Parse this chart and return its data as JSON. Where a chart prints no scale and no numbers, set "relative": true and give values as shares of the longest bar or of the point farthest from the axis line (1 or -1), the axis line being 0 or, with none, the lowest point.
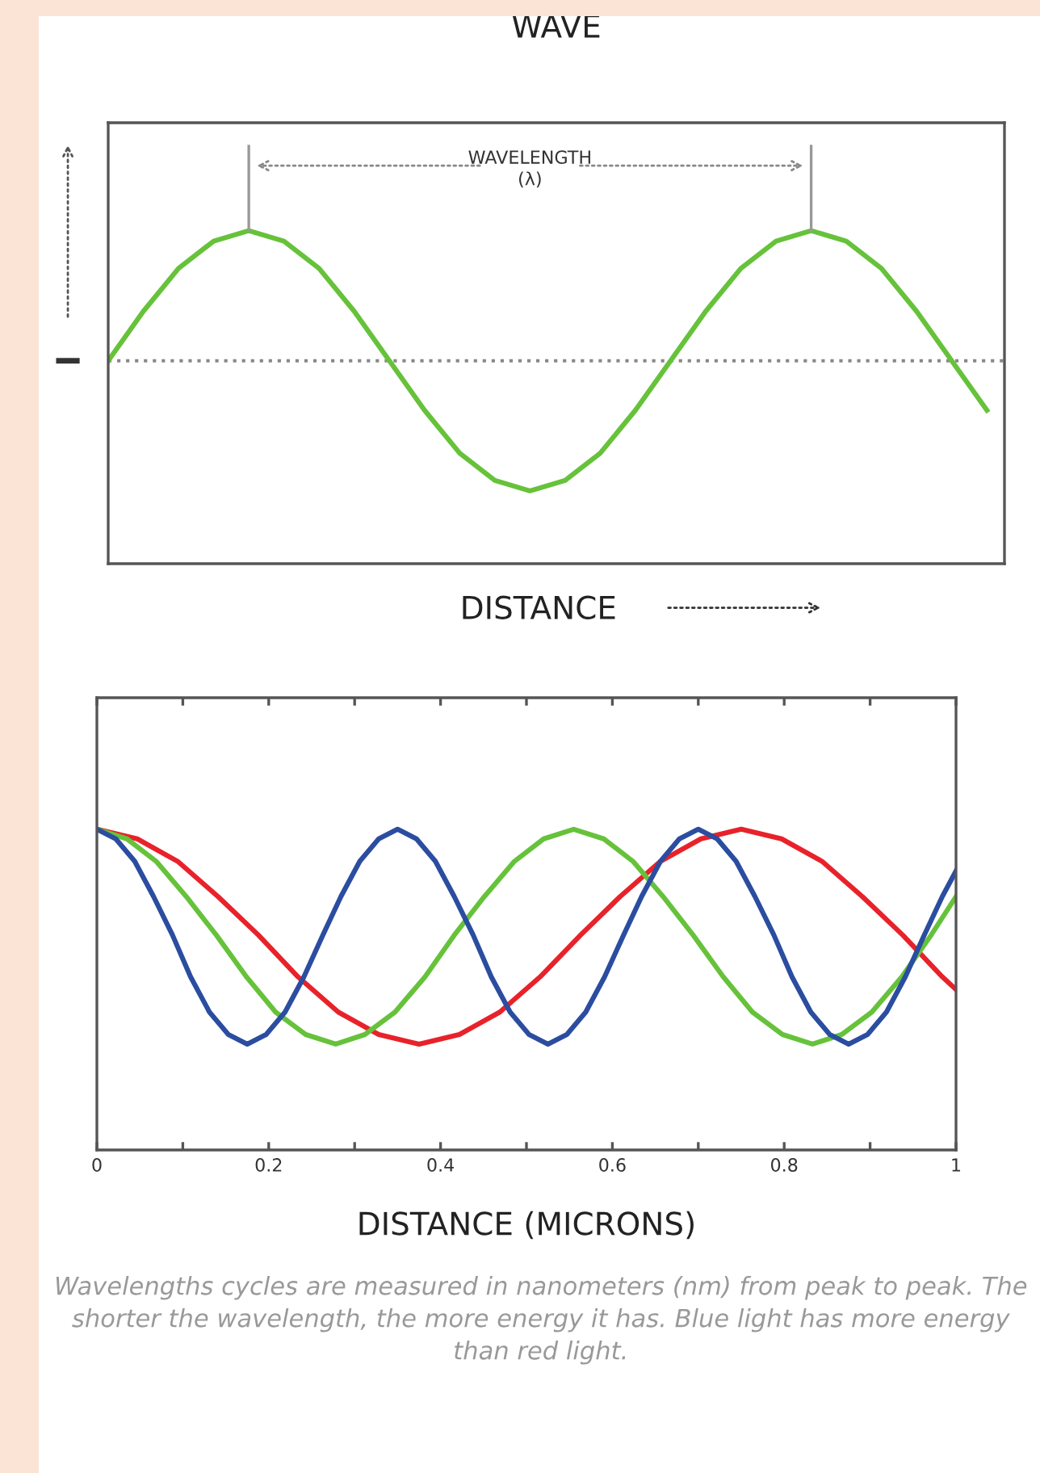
{
  "chart_data": [
    {
      "type": "line",
      "title": "WAVE",
      "xlabel": "DISTANCE",
      "relative": true,
      "tick_labels": false,
      "grid": false,
      "categories": [
        null,
        null,
        null,
        null,
        null,
        null,
        null,
        null,
        null,
        null,
        null,
        null,
        null,
        null,
        null,
        null,
        null,
        null,
        null,
        null,
        null,
        null,
        null,
        null,
        null,
        null
      ],
      "series": [
        {
          "color": "#66c23a",
          "values": [
            0,
            0.38,
            0.71,
            0.92,
            1,
            0.92,
            0.71,
            0.38,
            0,
            -0.38,
            -0.71,
            -0.92,
            -1,
            -0.92,
            -0.71,
            -0.38,
            0,
            0.38,
            0.71,
            0.92,
            1,
            0.92,
            0.71,
            0.38,
            0,
            -0.38
          ]
        }
      ],
      "ref_lines": [
        {
          "axis": "y",
          "value": 0,
          "color": "#888888",
          "line_style": "dotted"
        }
      ],
      "annotations": [
        "WAVELENGTH\n(λ)"
      ]
    },
    {
      "type": "line",
      "xlabel": "DISTANCE (MICRONS)",
      "relative": true,
      "tick_labels": "x",
      "grid": false,
      "xlim": [
        0,
        1
      ],
      "xticks": [
        0,
        {
          "value": 0.1,
          "label": null
        },
        0.2,
        {
          "value": 0.3,
          "label": null
        },
        0.4,
        {
          "value": 0.5,
          "label": null
        },
        0.6,
        {
          "value": 0.7,
          "label": null
        },
        0.8,
        {
          "value": 0.9,
          "label": null
        },
        1
      ],
      "series": [
        {
          "color": "#e8222a",
          "x": [
            0,
            0.047,
            0.094,
            0.141,
            0.188,
            0.234,
            0.281,
            0.328,
            0.375,
            0.422,
            0.469,
            0.516,
            0.563,
            0.609,
            0.656,
            0.703,
            0.75,
            0.797,
            0.844,
            0.891,
            0.938,
            0.984,
            1.0
          ],
          "values": [
            1,
            0.97,
            0.9,
            0.79,
            0.67,
            0.54,
            0.43,
            0.36,
            0.33,
            0.36,
            0.43,
            0.54,
            0.67,
            0.79,
            0.9,
            0.97,
            1,
            0.97,
            0.9,
            0.79,
            0.67,
            0.54,
            0.5
          ]
        },
        {
          "color": "#66c23a",
          "x": [
            0,
            0.035,
            0.069,
            0.104,
            0.139,
            0.174,
            0.208,
            0.243,
            0.278,
            0.312,
            0.347,
            0.382,
            0.416,
            0.451,
            0.486,
            0.52,
            0.555,
            0.59,
            0.624,
            0.659,
            0.694,
            0.729,
            0.763,
            0.798,
            0.833,
            0.867,
            0.902,
            0.937,
            0.971,
            1.0
          ],
          "values": [
            1,
            0.97,
            0.9,
            0.79,
            0.67,
            0.54,
            0.43,
            0.36,
            0.33,
            0.36,
            0.43,
            0.54,
            0.67,
            0.79,
            0.9,
            0.97,
            1,
            0.97,
            0.9,
            0.79,
            0.67,
            0.54,
            0.43,
            0.36,
            0.33,
            0.36,
            0.43,
            0.54,
            0.67,
            0.79
          ]
        },
        {
          "color": "#2b4da0",
          "x": [
            0,
            0.022,
            0.044,
            0.066,
            0.088,
            0.109,
            0.131,
            0.153,
            0.175,
            0.197,
            0.219,
            0.241,
            0.263,
            0.284,
            0.306,
            0.328,
            0.35,
            0.372,
            0.394,
            0.416,
            0.438,
            0.459,
            0.481,
            0.503,
            0.525,
            0.547,
            0.569,
            0.591,
            0.613,
            0.634,
            0.656,
            0.678,
            0.7,
            0.722,
            0.744,
            0.766,
            0.788,
            0.809,
            0.831,
            0.853,
            0.875,
            0.897,
            0.919,
            0.941,
            0.963,
            0.984,
            1.0
          ],
          "values": [
            1,
            0.97,
            0.9,
            0.79,
            0.67,
            0.54,
            0.43,
            0.36,
            0.33,
            0.36,
            0.43,
            0.54,
            0.67,
            0.79,
            0.9,
            0.97,
            1,
            0.97,
            0.9,
            0.79,
            0.67,
            0.54,
            0.43,
            0.36,
            0.33,
            0.36,
            0.43,
            0.54,
            0.67,
            0.79,
            0.9,
            0.97,
            1,
            0.97,
            0.9,
            0.79,
            0.67,
            0.54,
            0.43,
            0.36,
            0.33,
            0.36,
            0.43,
            0.54,
            0.67,
            0.79,
            0.87
          ]
        }
      ],
      "annotations": [
        "Wavelengths cycles are measured in nanometers (nm) from peak to peak. The shorter the wavelength, the more energy it has. Blue light has more energy than red light."
      ]
    }
  ]
}
